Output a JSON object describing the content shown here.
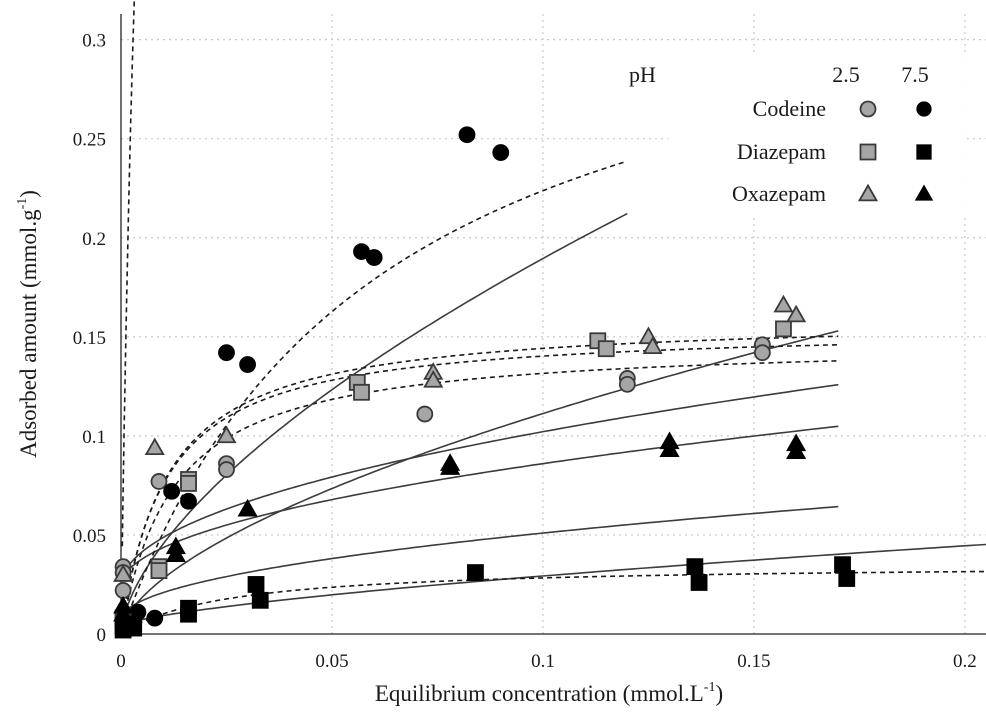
{
  "chart_data": {
    "type": "scatter",
    "xlabel": "Equilibrium concentration (mmol.L",
    "xlabel_sup": "-1",
    "xlabel_end": ")",
    "ylabel": "Adsorbed amount (mmol.g",
    "ylabel_sup": "-1",
    "ylabel_end": ")",
    "xlim": [
      0,
      0.205
    ],
    "ylim": [
      0,
      0.32
    ],
    "x_ticks": [
      0,
      0.05,
      0.1,
      0.15,
      0.2
    ],
    "x_tick_labels": [
      "0",
      "0.05",
      "0.1",
      "0.15",
      "0.2"
    ],
    "y_ticks": [
      0,
      0.05,
      0.1,
      0.15,
      0.2,
      0.25,
      0.3
    ],
    "y_tick_labels": [
      "0",
      "0.05",
      "0.1",
      "0.15",
      "0.2",
      "0.25",
      "0.3"
    ],
    "grid": true,
    "legend": {
      "position": "top-right",
      "header_label": "pH",
      "columns": [
        "2.5",
        "7.5"
      ],
      "rows": [
        "Codeine",
        "Diazepam",
        "Oxazepam"
      ]
    },
    "series": [
      {
        "drug": "Codeine",
        "pH": "2.5",
        "marker": "circle",
        "fill": "#a6a6a6",
        "points": [
          [
            0.0005,
            0.034
          ],
          [
            0.0005,
            0.031
          ],
          [
            0.0005,
            0.022
          ],
          [
            0.009,
            0.077
          ],
          [
            0.025,
            0.086
          ],
          [
            0.025,
            0.083
          ],
          [
            0.072,
            0.111
          ],
          [
            0.12,
            0.129
          ],
          [
            0.12,
            0.126
          ],
          [
            0.152,
            0.146
          ],
          [
            0.152,
            0.142
          ]
        ],
        "fit_solid": [
          0.024,
          0.196
        ],
        "fit_dashed": [
          0.0148,
          0.0125
        ]
      },
      {
        "drug": "Codeine",
        "pH": "7.5",
        "marker": "circle",
        "fill": "#000000",
        "points": [
          [
            0.0005,
            0.01
          ],
          [
            0.0005,
            0.007
          ],
          [
            0.004,
            0.011
          ],
          [
            0.008,
            0.008
          ],
          [
            0.012,
            0.072
          ],
          [
            0.016,
            0.067
          ],
          [
            0.025,
            0.142
          ],
          [
            0.03,
            0.136
          ],
          [
            0.057,
            0.193
          ],
          [
            0.06,
            0.19
          ],
          [
            0.082,
            0.252
          ],
          [
            0.09,
            0.243
          ]
        ],
        "fit_solid": [
          0.0,
          0.79
        ],
        "fit_dashed": [
          0.358,
          0.06
        ]
      },
      {
        "drug": "Diazepam",
        "pH": "2.5",
        "marker": "square",
        "fill": "#a6a6a6",
        "points": [
          [
            0.0005,
            0.008
          ],
          [
            0.0005,
            0.006
          ],
          [
            0.009,
            0.034
          ],
          [
            0.009,
            0.032
          ],
          [
            0.016,
            0.078
          ],
          [
            0.016,
            0.076
          ],
          [
            0.056,
            0.127
          ],
          [
            0.057,
            0.122
          ],
          [
            0.113,
            0.148
          ],
          [
            0.115,
            0.144
          ],
          [
            0.157,
            0.154
          ]
        ],
        "fit_solid": [
          0.0,
          0.443
        ],
        "fit_dashed": [
          0.0166,
          0.012
        ]
      },
      {
        "drug": "Diazepam",
        "pH": "7.5",
        "marker": "square",
        "fill": "#000000",
        "points": [
          [
            0.0005,
            0.004
          ],
          [
            0.0005,
            0.002
          ],
          [
            0.003,
            0.005
          ],
          [
            0.003,
            0.003
          ],
          [
            0.016,
            0.013
          ],
          [
            0.016,
            0.01
          ],
          [
            0.032,
            0.025
          ],
          [
            0.033,
            0.017
          ],
          [
            0.084,
            0.031
          ],
          [
            0.136,
            0.034
          ],
          [
            0.137,
            0.026
          ],
          [
            0.171,
            0.035
          ],
          [
            0.172,
            0.028
          ]
        ],
        "fit_solid": [
          0.0,
          0.121
        ],
        "fit_dashed": [
          0.0354,
          0.025
        ]
      },
      {
        "drug": "Oxazepam",
        "pH": "2.5",
        "marker": "triangle",
        "fill": "#a6a6a6",
        "points": [
          [
            0.0005,
            0.03
          ],
          [
            0.008,
            0.094
          ],
          [
            0.025,
            0.1
          ],
          [
            0.074,
            0.132
          ],
          [
            0.074,
            0.128
          ],
          [
            0.125,
            0.15
          ],
          [
            0.126,
            0.145
          ],
          [
            0.157,
            0.166
          ],
          [
            0.16,
            0.161
          ]
        ],
        "fit_solid": [
          0.024,
          0.247
        ],
        "fit_dashed": [
          0.0155,
          0.0105
        ]
      },
      {
        "drug": "Oxazepam",
        "pH": "7.5",
        "marker": "triangle",
        "fill": "#000000",
        "points": [
          [
            0.0005,
            0.014
          ],
          [
            0.0005,
            0.01
          ],
          [
            0.013,
            0.044
          ],
          [
            0.013,
            0.04
          ],
          [
            0.03,
            0.063
          ],
          [
            0.078,
            0.086
          ],
          [
            0.078,
            0.084
          ],
          [
            0.13,
            0.097
          ],
          [
            0.13,
            0.093
          ],
          [
            0.16,
            0.096
          ],
          [
            0.16,
            0.092
          ]
        ],
        "fit_solid": [
          0.007,
          0.139
        ],
        "fit_dashed": [
          0.093,
          0.006
        ]
      }
    ]
  }
}
